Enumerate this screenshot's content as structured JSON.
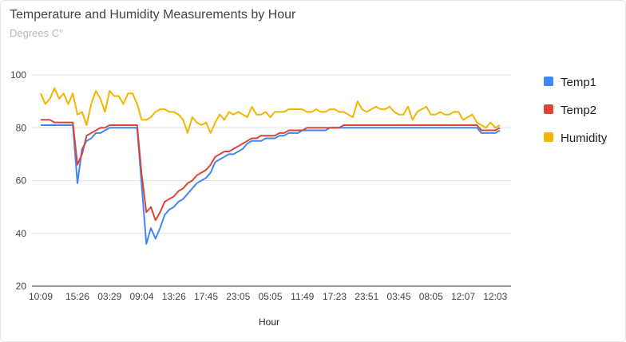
{
  "chart_data": {
    "type": "line",
    "title": "Temperature and Humidity Measurements by Hour",
    "subtitle": "Degrees C°",
    "xlabel": "Hour",
    "ylabel": "",
    "ylim": [
      20,
      100
    ],
    "yticks": [
      20,
      40,
      60,
      80,
      100
    ],
    "grid": true,
    "legend_position": "right",
    "x_tick_labels": [
      "10:09",
      "15:26",
      "03:29",
      "09:04",
      "13:26",
      "17:45",
      "23:05",
      "05:05",
      "11:49",
      "17:23",
      "23:51",
      "03:45",
      "08:05",
      "12:07",
      "12:03"
    ],
    "x_tick_indices": [
      0,
      8,
      15,
      22,
      29,
      36,
      43,
      50,
      57,
      64,
      71,
      78,
      85,
      92,
      99
    ],
    "series": [
      {
        "name": "Temp1",
        "color": "#4285f4",
        "values": [
          81,
          81,
          81,
          81,
          81,
          81,
          81,
          81,
          59,
          72,
          75,
          76,
          78,
          78,
          79,
          80,
          80,
          80,
          80,
          80,
          80,
          80,
          58,
          36,
          42,
          38,
          42,
          47,
          49,
          50,
          52,
          53,
          55,
          57,
          59,
          60,
          61,
          63,
          67,
          68,
          69,
          70,
          70,
          71,
          72,
          74,
          75,
          75,
          75,
          76,
          76,
          76,
          77,
          77,
          78,
          78,
          78,
          79,
          79,
          79,
          79,
          79,
          79,
          80,
          80,
          80,
          80,
          80,
          80,
          80,
          80,
          80,
          80,
          80,
          80,
          80,
          80,
          80,
          80,
          80,
          80,
          80,
          80,
          80,
          80,
          80,
          80,
          80,
          80,
          80,
          80,
          80,
          80,
          80,
          80,
          80,
          78,
          78,
          78,
          78,
          79
        ]
      },
      {
        "name": "Temp2",
        "color": "#db4437",
        "values": [
          83,
          83,
          83,
          82,
          82,
          82,
          82,
          82,
          66,
          70,
          77,
          78,
          79,
          80,
          80,
          81,
          81,
          81,
          81,
          81,
          81,
          81,
          62,
          48,
          50,
          45,
          48,
          52,
          53,
          54,
          56,
          57,
          59,
          60,
          62,
          63,
          64,
          66,
          69,
          70,
          71,
          71,
          72,
          73,
          74,
          75,
          76,
          76,
          77,
          77,
          77,
          77,
          78,
          78,
          79,
          79,
          79,
          79,
          80,
          80,
          80,
          80,
          80,
          80,
          80,
          80,
          81,
          81,
          81,
          81,
          81,
          81,
          81,
          81,
          81,
          81,
          81,
          81,
          81,
          81,
          81,
          81,
          81,
          81,
          81,
          81,
          81,
          81,
          81,
          81,
          81,
          81,
          81,
          81,
          81,
          81,
          79,
          79,
          79,
          79,
          80
        ]
      },
      {
        "name": "Humidity",
        "color": "#f4b400",
        "values": [
          93,
          89,
          91,
          95,
          91,
          93,
          89,
          93,
          85,
          86,
          81,
          89,
          94,
          91,
          86,
          94,
          92,
          92,
          89,
          93,
          93,
          89,
          83,
          83,
          84,
          86,
          87,
          87,
          86,
          86,
          85,
          83,
          78,
          84,
          82,
          81,
          82,
          78,
          82,
          85,
          83,
          86,
          85,
          86,
          85,
          84,
          88,
          85,
          85,
          86,
          84,
          86,
          86,
          86,
          87,
          87,
          87,
          87,
          86,
          86,
          87,
          86,
          86,
          87,
          87,
          86,
          86,
          85,
          84,
          90,
          87,
          86,
          87,
          88,
          87,
          87,
          88,
          86,
          85,
          85,
          88,
          83,
          86,
          87,
          88,
          85,
          85,
          86,
          85,
          85,
          86,
          86,
          83,
          84,
          85,
          82,
          81,
          80,
          82,
          80,
          81
        ]
      }
    ]
  }
}
